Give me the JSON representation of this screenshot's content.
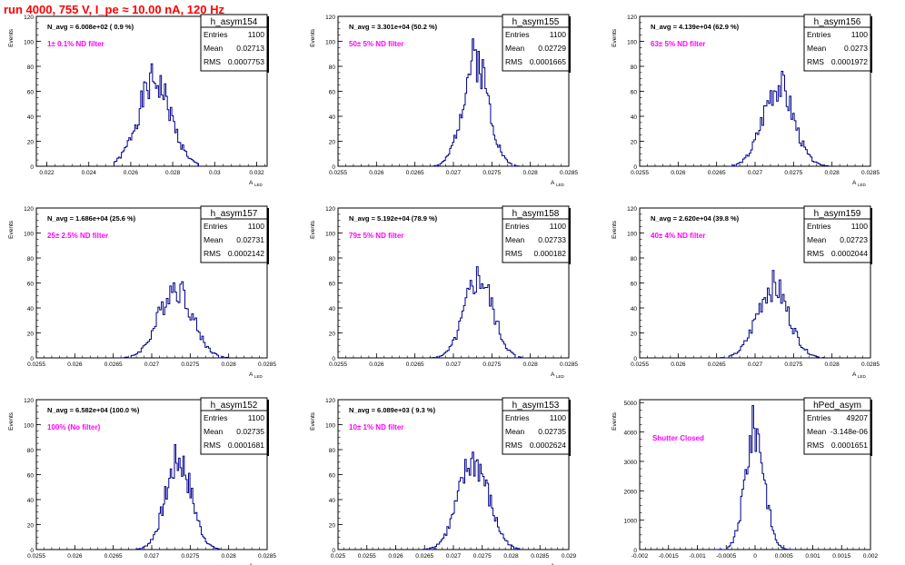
{
  "header": {
    "run_title": "run 4000,   755 V, I_pe ≈ 10.00 nA, 120 Hz"
  },
  "colors": {
    "histogram": "#00008b",
    "annotation": "#ff00ff",
    "title": "#ff0000"
  },
  "chart_data": [
    {
      "type": "bar",
      "name": "h_asym154",
      "ylabel": "Events",
      "xlabel": "A_LED",
      "nlabel": "N_avg = 6.008e+02 ( 0.9 %)",
      "filter": "1± 0.1% ND filter",
      "stats": {
        "entries": "1100",
        "mean": "0.02713",
        "rms": "0.0007753"
      },
      "xlim": [
        0.0215,
        0.0325
      ],
      "ylim": [
        0,
        120
      ],
      "xticks": [
        0.022,
        0.024,
        0.026,
        0.028,
        0.03,
        0.032
      ],
      "xtick_labels": [
        "0.022",
        "0.024",
        "0.026",
        "0.028",
        "0.03",
        "0.032"
      ],
      "yticks": [
        0,
        20,
        40,
        60,
        80,
        100,
        120
      ],
      "hist": {
        "mean": 0.02713,
        "rms": 0.0007753,
        "lo": 0.0252,
        "hi": 0.0293,
        "bins": 58,
        "peak": 82,
        "seed": 1
      }
    },
    {
      "type": "bar",
      "name": "h_asym155",
      "ylabel": "Events",
      "xlabel": "A_LED",
      "nlabel": "N_avg = 3.301e+04 (50.2 %)",
      "filter": "50± 5% ND filter",
      "stats": {
        "entries": "1100",
        "mean": "0.02729",
        "rms": "0.0001665"
      },
      "xlim": [
        0.0255,
        0.0285
      ],
      "ylim": [
        0,
        120
      ],
      "xticks": [
        0.0255,
        0.026,
        0.0265,
        0.027,
        0.0275,
        0.028,
        0.0285
      ],
      "xtick_labels": [
        "0.0255",
        "0.026",
        "0.0265",
        "0.027",
        "0.0275",
        "0.028",
        "0.0285"
      ],
      "yticks": [
        0,
        20,
        40,
        60,
        80,
        100,
        120
      ],
      "hist": {
        "mean": 0.02729,
        "rms": 0.0001665,
        "lo": 0.02675,
        "hi": 0.02785,
        "bins": 60,
        "peak": 102,
        "seed": 2
      }
    },
    {
      "type": "bar",
      "name": "h_asym156",
      "ylabel": "Events",
      "xlabel": "A_LED",
      "nlabel": "N_avg = 4.139e+04 (62.9 %)",
      "filter": "63± 5% ND filter",
      "stats": {
        "entries": "1100",
        "mean": "0.0273",
        "rms": "0.0001972"
      },
      "xlim": [
        0.0255,
        0.0285
      ],
      "ylim": [
        0,
        120
      ],
      "xticks": [
        0.0255,
        0.026,
        0.0265,
        0.027,
        0.0275,
        0.028,
        0.0285
      ],
      "xtick_labels": [
        "0.0255",
        "0.026",
        "0.0265",
        "0.027",
        "0.0275",
        "0.028",
        "0.0285"
      ],
      "yticks": [
        0,
        20,
        40,
        60,
        80,
        100,
        120
      ],
      "hist": {
        "mean": 0.0273,
        "rms": 0.0001972,
        "lo": 0.02665,
        "hi": 0.02795,
        "bins": 62,
        "peak": 76,
        "seed": 3
      }
    },
    {
      "type": "bar",
      "name": "h_asym157",
      "ylabel": "Events",
      "xlabel": "A_LED",
      "nlabel": "N_avg = 1.686e+04 (25.6 %)",
      "filter": "25± 2.5% ND filter",
      "stats": {
        "entries": "1100",
        "mean": "0.02731",
        "rms": "0.0002142"
      },
      "xlim": [
        0.0255,
        0.0285
      ],
      "ylim": [
        0,
        120
      ],
      "xticks": [
        0.0255,
        0.026,
        0.0265,
        0.027,
        0.0275,
        0.028,
        0.0285
      ],
      "xtick_labels": [
        "0.0255",
        "0.026",
        "0.0265",
        "0.027",
        "0.0275",
        "0.028",
        "0.0285"
      ],
      "yticks": [
        0,
        20,
        40,
        60,
        80,
        100,
        120
      ],
      "hist": {
        "mean": 0.02731,
        "rms": 0.0002142,
        "lo": 0.0266,
        "hi": 0.028,
        "bins": 64,
        "peak": 61,
        "seed": 4
      }
    },
    {
      "type": "bar",
      "name": "h_asym158",
      "ylabel": "Events",
      "xlabel": "A_LED",
      "nlabel": "N_avg = 5.192e+04 (78.9 %)",
      "filter": "79± 5% ND filter",
      "stats": {
        "entries": "1100",
        "mean": "0.02733",
        "rms": "0.000182"
      },
      "xlim": [
        0.0255,
        0.0285
      ],
      "ylim": [
        0,
        120
      ],
      "xticks": [
        0.0255,
        0.026,
        0.0265,
        0.027,
        0.0275,
        0.028,
        0.0285
      ],
      "xtick_labels": [
        "0.0255",
        "0.026",
        "0.0265",
        "0.027",
        "0.0275",
        "0.028",
        "0.0285"
      ],
      "yticks": [
        0,
        20,
        40,
        60,
        80,
        100,
        120
      ],
      "hist": {
        "mean": 0.02733,
        "rms": 0.000182,
        "lo": 0.02665,
        "hi": 0.02795,
        "bins": 62,
        "peak": 73,
        "seed": 5
      }
    },
    {
      "type": "bar",
      "name": "h_asym159",
      "ylabel": "Events",
      "xlabel": "A_LED",
      "nlabel": "N_avg = 2.620e+04 (39.8 %)",
      "filter": "40± 4% ND filter",
      "stats": {
        "entries": "1100",
        "mean": "0.02723",
        "rms": "0.0002044"
      },
      "xlim": [
        0.0255,
        0.0285
      ],
      "ylim": [
        0,
        120
      ],
      "xticks": [
        0.0255,
        0.026,
        0.0265,
        0.027,
        0.0275,
        0.028,
        0.0285
      ],
      "xtick_labels": [
        "0.0255",
        "0.026",
        "0.0265",
        "0.027",
        "0.0275",
        "0.028",
        "0.0285"
      ],
      "yticks": [
        0,
        20,
        40,
        60,
        80,
        100,
        120
      ],
      "hist": {
        "mean": 0.02723,
        "rms": 0.0002044,
        "lo": 0.02655,
        "hi": 0.0279,
        "bins": 62,
        "peak": 70,
        "seed": 6
      }
    },
    {
      "type": "bar",
      "name": "h_asym152",
      "ylabel": "Events",
      "xlabel": "A_LED",
      "nlabel": "N_avg = 6.582e+04 (100.0 %)",
      "filter": "100% (No filter)",
      "stats": {
        "entries": "1100",
        "mean": "0.02735",
        "rms": "0.0001681"
      },
      "xlim": [
        0.0255,
        0.0285
      ],
      "ylim": [
        0,
        120
      ],
      "xticks": [
        0.0255,
        0.026,
        0.0265,
        0.027,
        0.0275,
        0.028,
        0.0285
      ],
      "xtick_labels": [
        "0.0255",
        "0.026",
        "0.0265",
        "0.027",
        "0.0275",
        "0.028",
        "0.0285"
      ],
      "yticks": [
        0,
        20,
        40,
        60,
        80,
        100,
        120
      ],
      "hist": {
        "mean": 0.02735,
        "rms": 0.0001681,
        "lo": 0.0268,
        "hi": 0.0279,
        "bins": 60,
        "peak": 84,
        "seed": 7
      }
    },
    {
      "type": "bar",
      "name": "h_asym153",
      "ylabel": "Events",
      "xlabel": "A_LED",
      "nlabel": "N_avg = 6.089e+03 ( 9.3 %)",
      "filter": "10± 1% ND filter",
      "stats": {
        "entries": "1100",
        "mean": "0.02735",
        "rms": "0.0002624"
      },
      "xlim": [
        0.025,
        0.029
      ],
      "ylim": [
        0,
        120
      ],
      "xticks": [
        0.025,
        0.0255,
        0.026,
        0.0265,
        0.027,
        0.0275,
        0.028,
        0.0285,
        0.029
      ],
      "xtick_labels": [
        "0.025",
        "0.0255",
        "0.026",
        "0.0265",
        "0.027",
        "0.0275",
        "0.028",
        "0.0285",
        "0.029"
      ],
      "yticks": [
        0,
        20,
        40,
        60,
        80,
        100,
        120
      ],
      "hist": {
        "mean": 0.02735,
        "rms": 0.0002624,
        "lo": 0.02645,
        "hi": 0.02815,
        "bins": 66,
        "peak": 78,
        "seed": 8
      }
    },
    {
      "type": "bar",
      "name": "hPed_asym",
      "ylabel": "Events",
      "xlabel": "",
      "nlabel": "",
      "filter": "Shutter Closed",
      "stats": {
        "entries": "49207",
        "mean": "-3.148e-06",
        "rms": "0.0001651"
      },
      "xlim": [
        -0.002,
        0.002
      ],
      "ylim": [
        0,
        5100
      ],
      "xticks": [
        -0.002,
        -0.0015,
        -0.001,
        -0.0005,
        0,
        0.0005,
        0.001,
        0.0015,
        0.002
      ],
      "xtick_labels": [
        "-0.002",
        "-0.0015",
        "-0.001",
        "-0.0005",
        "0",
        "0.0005",
        "0.001",
        "0.0015",
        "0.002"
      ],
      "yticks": [
        0,
        1000,
        2000,
        3000,
        4000,
        5000
      ],
      "hist": {
        "mean": -3.148e-06,
        "rms": 0.0001651,
        "lo": -0.0007,
        "hi": 0.0007,
        "bins": 56,
        "peak": 4900,
        "seed": 9
      }
    }
  ]
}
